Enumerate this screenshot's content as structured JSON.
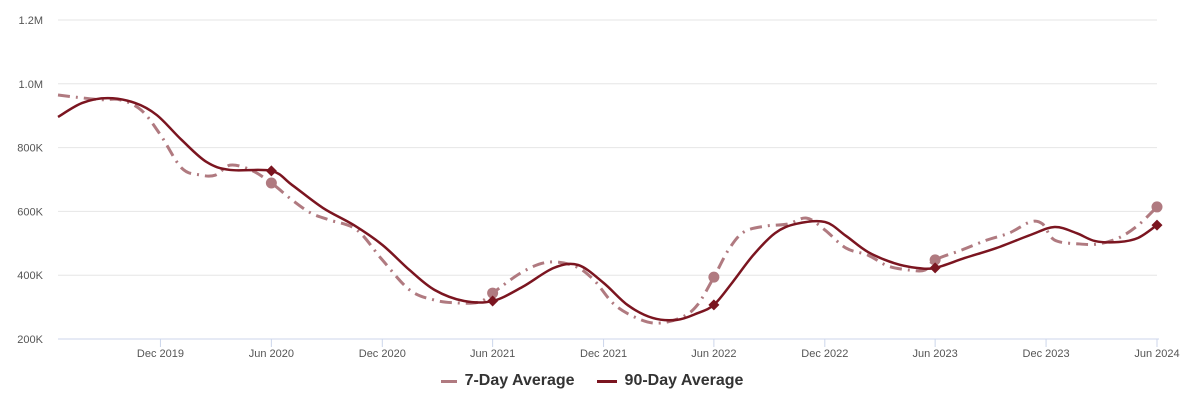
{
  "chart_data": {
    "type": "line",
    "title": "",
    "xlabel": "",
    "ylabel": "",
    "ylim": [
      200000,
      1200000
    ],
    "xlim": [
      "2019-06-15",
      "2024-06-01"
    ],
    "yticks": [
      200000,
      400000,
      600000,
      800000,
      1000000,
      1200000
    ],
    "ytick_labels": [
      "200K",
      "400K",
      "600K",
      "800K",
      "1.0M",
      "1.2M"
    ],
    "xticks": [
      "2019-12-01",
      "2020-06-01",
      "2020-12-01",
      "2021-06-01",
      "2021-12-01",
      "2022-06-01",
      "2022-12-01",
      "2023-06-01",
      "2023-12-01",
      "2024-06-01"
    ],
    "xtick_labels": [
      "Dec 2019",
      "Jun 2020",
      "Dec 2020",
      "Jun 2021",
      "Dec 2021",
      "Jun 2022",
      "Dec 2022",
      "Jun 2023",
      "Dec 2023",
      "Jun 2024"
    ],
    "grid": true,
    "legend": "bottom",
    "series": [
      {
        "name": "7-Day Average",
        "color": "#b07a80",
        "style": "dash-dot",
        "marker": "circle",
        "marker_dates": [
          "2020-06-01",
          "2021-06-01",
          "2022-06-01",
          "2023-06-01",
          "2024-06-01"
        ],
        "points": [
          [
            "2019-06-15",
            965000
          ],
          [
            "2019-07-15",
            958000
          ],
          [
            "2019-08-25",
            950000
          ],
          [
            "2019-09-25",
            950000
          ],
          [
            "2019-10-30",
            918000
          ],
          [
            "2019-12-01",
            840000
          ],
          [
            "2020-01-05",
            736000
          ],
          [
            "2020-02-05",
            714000
          ],
          [
            "2020-03-01",
            714000
          ],
          [
            "2020-03-25",
            745000
          ],
          [
            "2020-04-28",
            730000
          ],
          [
            "2020-06-01",
            689000
          ],
          [
            "2020-07-05",
            636000
          ],
          [
            "2020-08-05",
            595000
          ],
          [
            "2020-09-05",
            573000
          ],
          [
            "2020-10-20",
            542000
          ],
          [
            "2020-12-01",
            448000
          ],
          [
            "2021-01-15",
            354000
          ],
          [
            "2021-02-25",
            322000
          ],
          [
            "2021-04-05",
            313000
          ],
          [
            "2021-05-10",
            316000
          ],
          [
            "2021-06-01",
            344000
          ],
          [
            "2021-07-20",
            410000
          ],
          [
            "2021-09-01",
            441000
          ],
          [
            "2021-10-15",
            428000
          ],
          [
            "2021-11-15",
            385000
          ],
          [
            "2021-12-20",
            306000
          ],
          [
            "2022-02-01",
            260000
          ],
          [
            "2022-03-05",
            250000
          ],
          [
            "2022-04-10",
            269000
          ],
          [
            "2022-05-05",
            307000
          ],
          [
            "2022-06-01",
            394000
          ],
          [
            "2022-06-25",
            479000
          ],
          [
            "2022-07-20",
            535000
          ],
          [
            "2022-08-25",
            554000
          ],
          [
            "2022-09-30",
            560000
          ],
          [
            "2022-11-01",
            579000
          ],
          [
            "2022-12-01",
            542000
          ],
          [
            "2023-01-05",
            485000
          ],
          [
            "2023-02-10",
            463000
          ],
          [
            "2023-03-15",
            429000
          ],
          [
            "2023-04-20",
            416000
          ],
          [
            "2023-05-15",
            416000
          ],
          [
            "2023-06-01",
            448000
          ],
          [
            "2023-07-15",
            479000
          ],
          [
            "2023-08-25",
            510000
          ],
          [
            "2023-10-01",
            532000
          ],
          [
            "2023-11-05",
            567000
          ],
          [
            "2023-11-25",
            561000
          ],
          [
            "2023-12-15",
            510000
          ],
          [
            "2024-01-25",
            498000
          ],
          [
            "2024-02-25",
            498000
          ],
          [
            "2024-03-30",
            517000
          ],
          [
            "2024-05-01",
            557000
          ],
          [
            "2024-06-01",
            614000
          ]
        ]
      },
      {
        "name": "90-Day Average",
        "color": "#7b1520",
        "style": "solid",
        "marker": "diamond",
        "marker_dates": [
          "2020-06-01",
          "2021-06-01",
          "2022-06-01",
          "2023-06-01",
          "2024-06-01"
        ],
        "points": [
          [
            "2019-06-15",
            896000
          ],
          [
            "2019-07-25",
            940000
          ],
          [
            "2019-09-05",
            955000
          ],
          [
            "2019-10-20",
            940000
          ],
          [
            "2019-11-25",
            902000
          ],
          [
            "2020-01-05",
            824000
          ],
          [
            "2020-02-15",
            755000
          ],
          [
            "2020-03-25",
            730000
          ],
          [
            "2020-06-01",
            727000
          ],
          [
            "2020-07-05",
            683000
          ],
          [
            "2020-08-25",
            611000
          ],
          [
            "2020-10-15",
            557000
          ],
          [
            "2020-12-01",
            495000
          ],
          [
            "2021-01-15",
            416000
          ],
          [
            "2021-02-25",
            354000
          ],
          [
            "2021-04-15",
            319000
          ],
          [
            "2021-06-01",
            319000
          ],
          [
            "2021-07-20",
            363000
          ],
          [
            "2021-09-10",
            423000
          ],
          [
            "2021-10-20",
            432000
          ],
          [
            "2021-12-01",
            376000
          ],
          [
            "2022-01-10",
            306000
          ],
          [
            "2022-02-20",
            266000
          ],
          [
            "2022-04-01",
            260000
          ],
          [
            "2022-05-05",
            281000
          ],
          [
            "2022-06-01",
            307000
          ],
          [
            "2022-07-01",
            376000
          ],
          [
            "2022-08-05",
            463000
          ],
          [
            "2022-09-10",
            532000
          ],
          [
            "2022-10-15",
            561000
          ],
          [
            "2022-12-01",
            567000
          ],
          [
            "2023-01-05",
            523000
          ],
          [
            "2023-02-10",
            473000
          ],
          [
            "2023-03-25",
            438000
          ],
          [
            "2023-05-01",
            423000
          ],
          [
            "2023-06-01",
            423000
          ],
          [
            "2023-07-20",
            454000
          ],
          [
            "2023-09-10",
            485000
          ],
          [
            "2023-11-05",
            526000
          ],
          [
            "2023-12-15",
            551000
          ],
          [
            "2024-01-20",
            532000
          ],
          [
            "2024-02-20",
            507000
          ],
          [
            "2024-03-30",
            504000
          ],
          [
            "2024-05-01",
            517000
          ],
          [
            "2024-06-01",
            557000
          ]
        ]
      }
    ]
  }
}
